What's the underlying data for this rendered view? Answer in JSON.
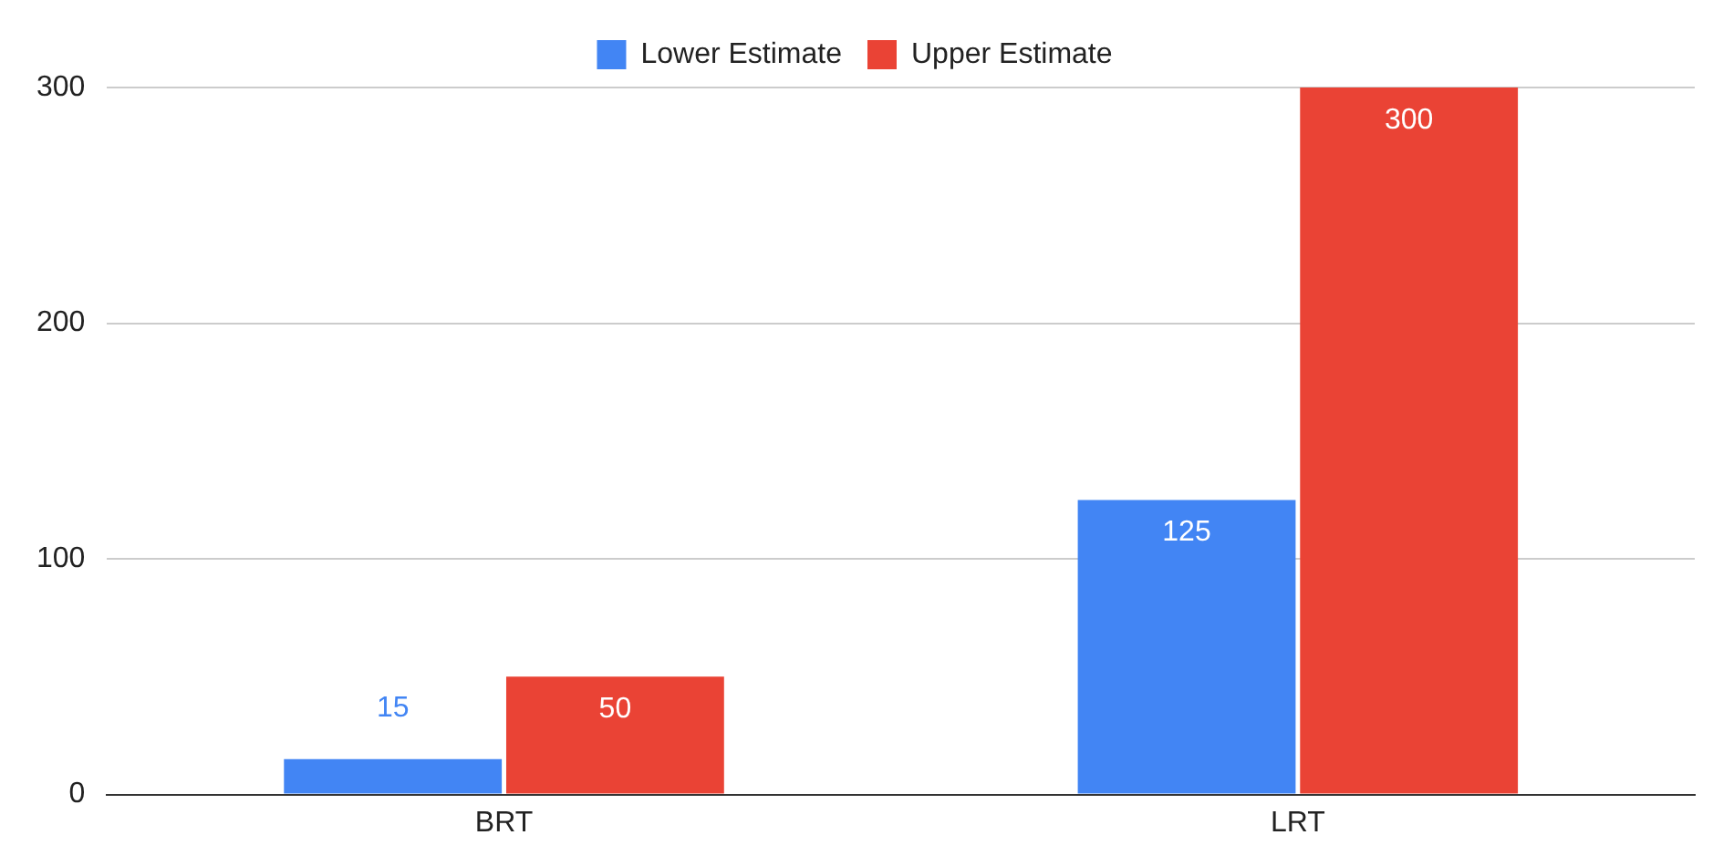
{
  "chart_data": {
    "type": "bar",
    "categories": [
      "BRT",
      "LRT"
    ],
    "series": [
      {
        "name": "Lower Estimate",
        "color": "#4285f4",
        "values": [
          15,
          125
        ]
      },
      {
        "name": "Upper Estimate",
        "color": "#ea4335",
        "values": [
          50,
          300
        ]
      }
    ],
    "ylim": [
      0,
      300
    ],
    "yticks": [
      0,
      100,
      200,
      300
    ],
    "grid": "y",
    "legend": "top",
    "data_labels": true
  }
}
